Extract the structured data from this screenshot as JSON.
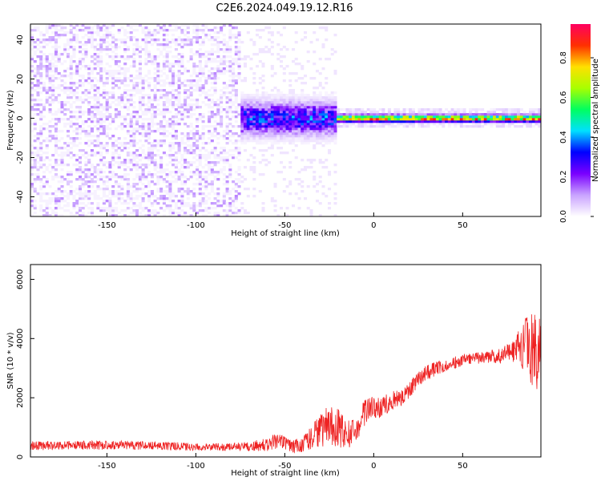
{
  "figure_title": "C2E6.2024.049.19.12.R16",
  "chart_data": [
    {
      "type": "heatmap",
      "xlabel": "Height of straight line (km)",
      "ylabel": "Frequency (Hz)",
      "xlim": [
        -193,
        94
      ],
      "ylim": [
        -50,
        48
      ],
      "x_ticks": [
        -150,
        -100,
        -50,
        0,
        50
      ],
      "y_ticks": [
        -40,
        -20,
        0,
        20,
        40
      ],
      "colorbar": {
        "label": "Normalized spectral amplitude",
        "range": [
          0,
          0.97
        ],
        "ticks": [
          0.0,
          0.2,
          0.4,
          0.6,
          0.8
        ],
        "colormap": [
          "#ffffff",
          "#c9a3ff",
          "#7a00ff",
          "#0000ff",
          "#00e0ff",
          "#00ff60",
          "#a8ff00",
          "#ffe000",
          "#ff3000",
          "#ff0060"
        ]
      },
      "regions": [
        {
          "x_range": [
            -193,
            -75
          ],
          "pattern": "scattered noise",
          "amplitude": 0.06
        },
        {
          "x_range": [
            -75,
            -20
          ],
          "pattern": "broad signal around 0 Hz",
          "freq_center": 0,
          "freq_spread": [
            -12,
            12
          ],
          "peak_amplitude": 0.4
        },
        {
          "x_range": [
            -20,
            94
          ],
          "pattern": "narrow line at 0 Hz",
          "freq_center": 0,
          "freq_spread": [
            -2,
            2
          ],
          "peak_amplitude": 0.97
        }
      ]
    },
    {
      "type": "line",
      "xlabel": "Height of straight line (km)",
      "ylabel": "SNR (10 * v/v)",
      "xlim": [
        -193,
        94
      ],
      "ylim": [
        0,
        6500
      ],
      "x_ticks": [
        -150,
        -100,
        -50,
        0,
        50
      ],
      "y_ticks": [
        0,
        2000,
        4000,
        6000
      ],
      "series": [
        {
          "color": "#ee2222",
          "x": [
            -193,
            -170,
            -150,
            -120,
            -100,
            -80,
            -70,
            -60,
            -55,
            -50,
            -45,
            -40,
            -35,
            -30,
            -25,
            -20,
            -15,
            -10,
            -5,
            0,
            5,
            10,
            15,
            20,
            25,
            30,
            40,
            50,
            60,
            70,
            75,
            80,
            85,
            90,
            94
          ],
          "y": [
            380,
            390,
            400,
            380,
            340,
            330,
            360,
            420,
            550,
            480,
            350,
            450,
            650,
            900,
            1050,
            1000,
            700,
            900,
            1500,
            1700,
            1700,
            1900,
            2000,
            2300,
            2600,
            2850,
            3100,
            3250,
            3350,
            3400,
            3500,
            3650,
            3800,
            3500,
            3300
          ],
          "noise_amplitude": [
            150,
            150,
            150,
            140,
            130,
            130,
            160,
            220,
            300,
            250,
            220,
            280,
            400,
            600,
            700,
            650,
            500,
            450,
            450,
            400,
            350,
            350,
            330,
            300,
            280,
            260,
            220,
            200,
            200,
            250,
            300,
            450,
            900,
            1400,
            1500
          ]
        }
      ]
    }
  ]
}
